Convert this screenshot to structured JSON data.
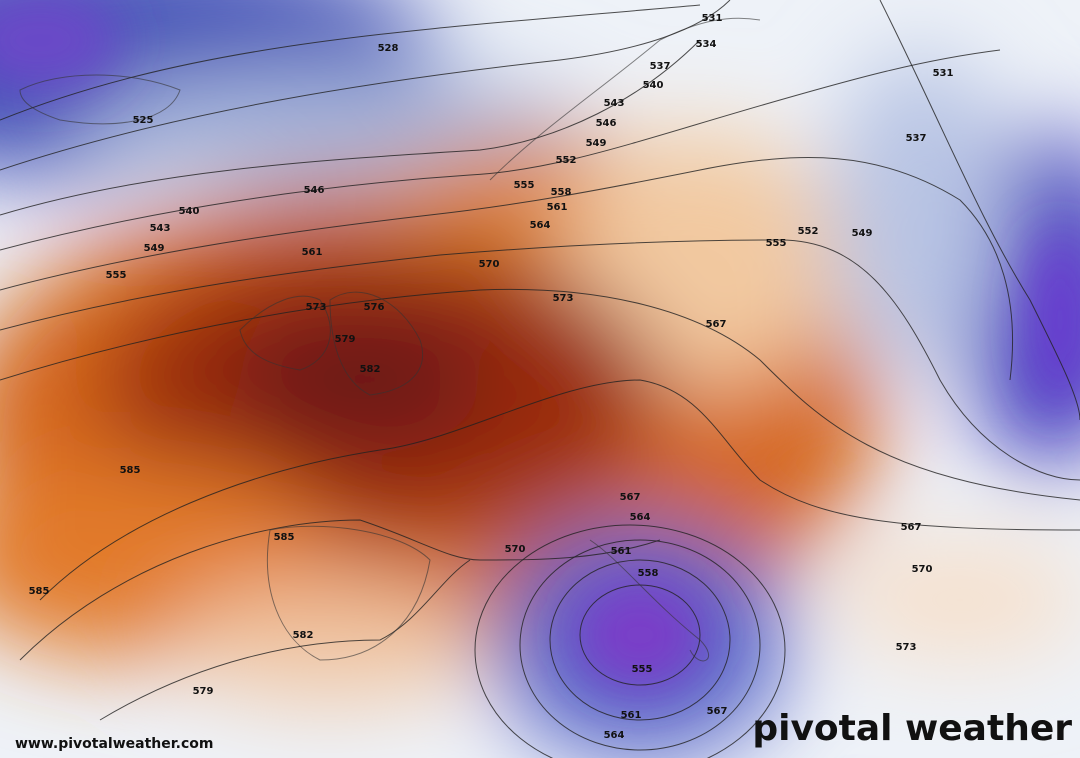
{
  "map": {
    "contour_labels": [
      528,
      525,
      531,
      534,
      537,
      540,
      543,
      546,
      549,
      552,
      555,
      558,
      561,
      564,
      546,
      540,
      543,
      549,
      555,
      561,
      570,
      573,
      576,
      579,
      582,
      573,
      567,
      555,
      552,
      549,
      531,
      537,
      585,
      585,
      585,
      582,
      579,
      570,
      567,
      564,
      561,
      558,
      555,
      561,
      564,
      567,
      567,
      570,
      573
    ]
  },
  "branding": {
    "url": "www.pivotalweather.com",
    "logo": "pivotal weather"
  }
}
